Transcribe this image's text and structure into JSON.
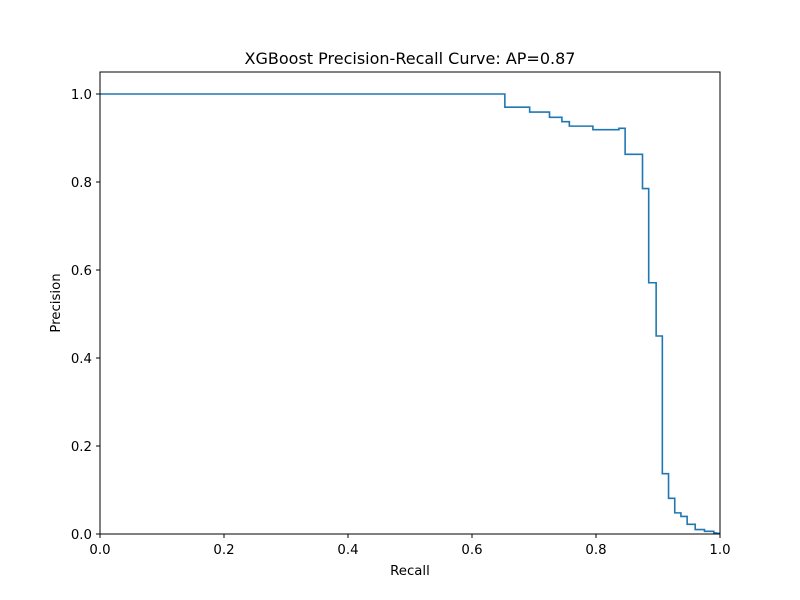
{
  "chart_data": {
    "type": "line",
    "title": "XGBoost Precision-Recall Curve: AP=0.87",
    "xlabel": "Recall",
    "ylabel": "Precision",
    "xlim": [
      0.0,
      1.0
    ],
    "ylim": [
      0.0,
      1.05
    ],
    "xticks": [
      "0.0",
      "0.2",
      "0.4",
      "0.6",
      "0.8",
      "1.0"
    ],
    "yticks": [
      "0.0",
      "0.2",
      "0.4",
      "0.6",
      "0.8",
      "1.0"
    ],
    "xtick_values": [
      0.0,
      0.2,
      0.4,
      0.6,
      0.8,
      1.0
    ],
    "ytick_values": [
      0.0,
      0.2,
      0.4,
      0.6,
      0.8,
      1.0
    ],
    "grid": false,
    "line_color": "#1f77b4",
    "step": "post",
    "series": [
      {
        "name": "",
        "x": [
          0.0,
          0.653,
          0.653,
          0.693,
          0.693,
          0.725,
          0.725,
          0.745,
          0.745,
          0.757,
          0.757,
          0.795,
          0.795,
          0.837,
          0.837,
          0.847,
          0.847,
          0.875,
          0.875,
          0.885,
          0.885,
          0.897,
          0.897,
          0.907,
          0.907,
          0.917,
          0.917,
          0.927,
          0.927,
          0.937,
          0.937,
          0.947,
          0.947,
          0.96,
          0.96,
          0.975,
          0.975,
          0.99,
          0.99,
          1.0
        ],
        "y": [
          1.0,
          1.0,
          0.97,
          0.97,
          0.959,
          0.959,
          0.947,
          0.947,
          0.937,
          0.937,
          0.927,
          0.927,
          0.919,
          0.919,
          0.922,
          0.922,
          0.863,
          0.863,
          0.785,
          0.785,
          0.571,
          0.571,
          0.45,
          0.45,
          0.137,
          0.137,
          0.081,
          0.081,
          0.048,
          0.048,
          0.04,
          0.04,
          0.022,
          0.022,
          0.01,
          0.01,
          0.006,
          0.006,
          0.003,
          0.001
        ]
      }
    ]
  }
}
